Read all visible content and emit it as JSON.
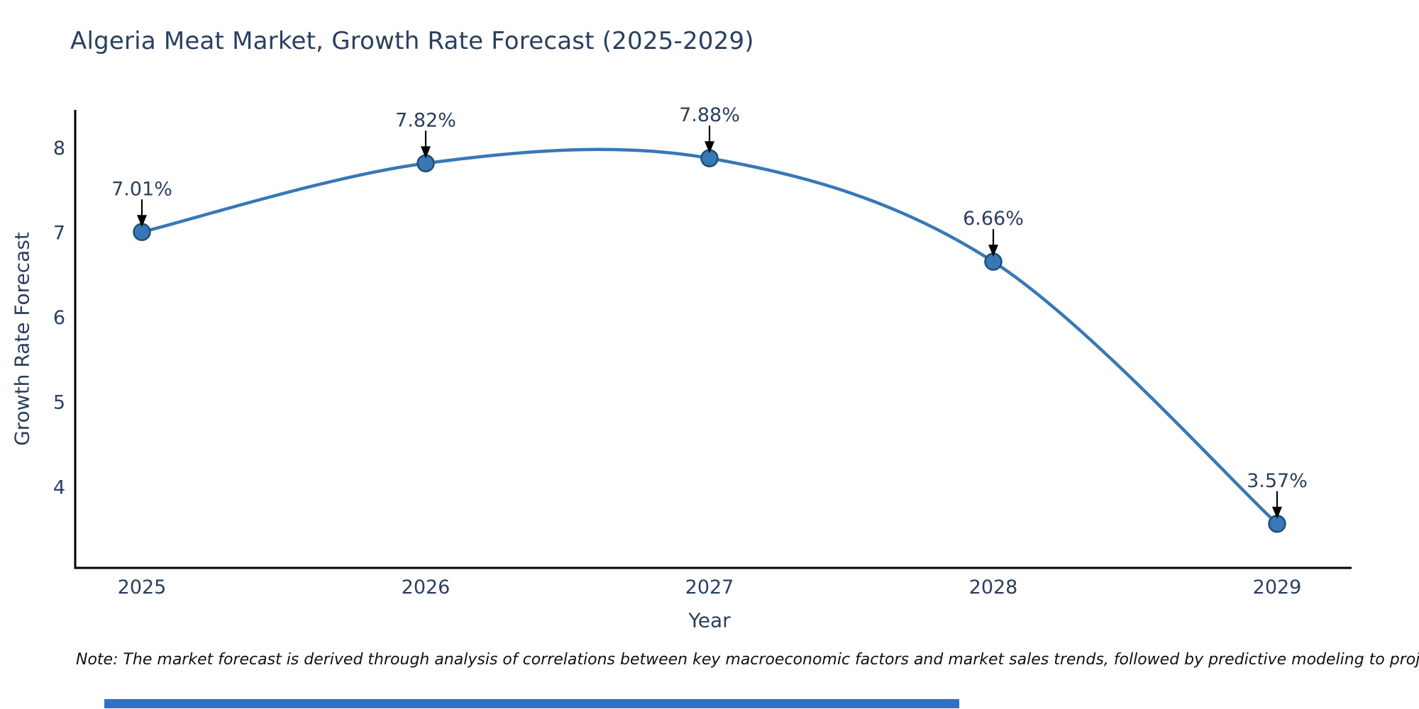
{
  "title": "Algeria Meat Market, Growth Rate Forecast (2025-2029)",
  "chart_data": {
    "type": "line",
    "title": "Algeria Meat Market, Growth Rate Forecast (2025-2029)",
    "xlabel": "Year",
    "ylabel": "Growth Rate Forecast",
    "x": [
      2025,
      2026,
      2027,
      2028,
      2029
    ],
    "xticks": [
      "2025",
      "2026",
      "2027",
      "2028",
      "2029"
    ],
    "series": [
      {
        "name": "Growth Rate Forecast",
        "values": [
          7.01,
          7.82,
          7.88,
          6.66,
          3.57
        ]
      }
    ],
    "point_labels": [
      "7.01%",
      "7.82%",
      "7.88%",
      "6.66%",
      "3.57%"
    ],
    "yticks": [
      4,
      5,
      6,
      7,
      8
    ],
    "ylim": [
      3.05,
      8.45
    ],
    "line_shape": "spline",
    "grid": false,
    "legend": "none",
    "annotations_have_arrows": true
  },
  "note": "Note: The market forecast is derived through analysis of correlations between key macroeconomic factors and market sales trends, followed by predictive modeling to project future sales.",
  "colors": {
    "line": "#3878b4",
    "marker_fill": "#3878b4",
    "marker_edge": "#1f4e79",
    "axis": "#000000",
    "arrow": "#000000",
    "text": "#2a3f5f",
    "note_text": "#111111",
    "background": "#ffffff",
    "bottom_bar": "#2e72c8"
  }
}
